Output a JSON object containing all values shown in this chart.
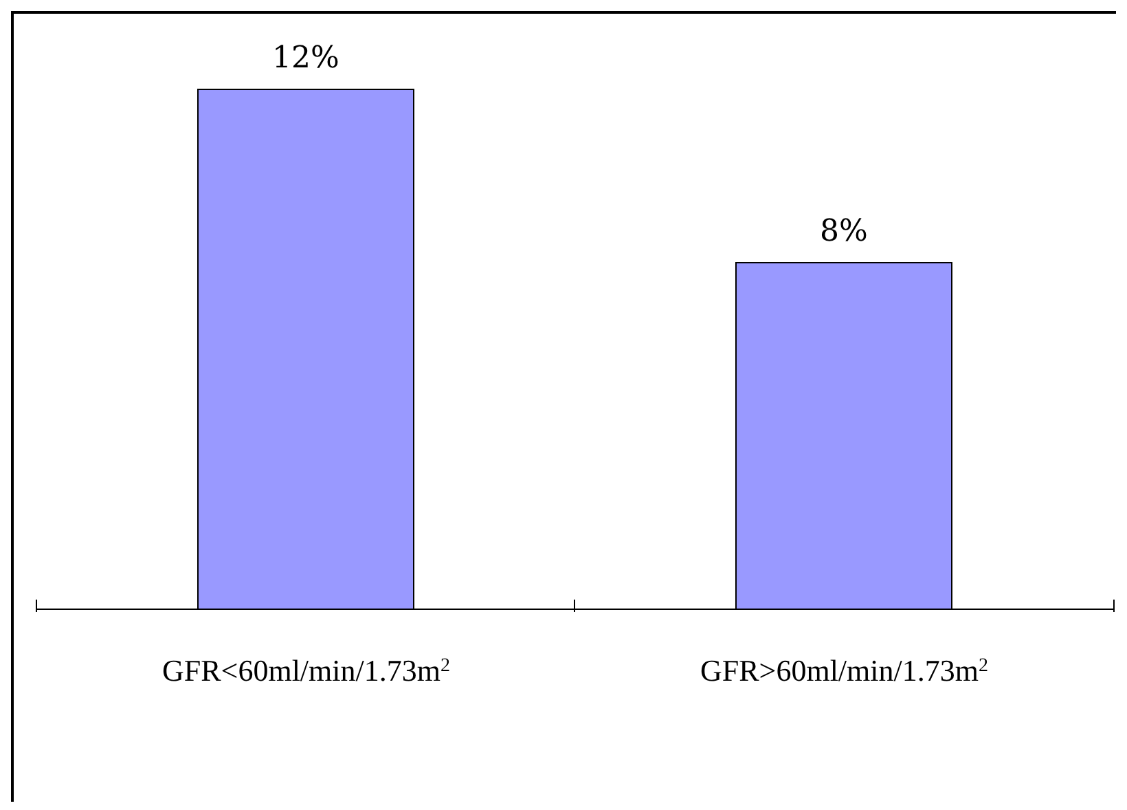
{
  "chart_data": {
    "type": "bar",
    "categories": [
      "GFR<60ml/min/1.73m$^{2}$",
      "GFR>60ml/min/1.73m$^{2}$"
    ],
    "values": [
      12,
      8
    ],
    "color": "#9999ff",
    "value_labels": [
      "12%",
      "8%"
    ]
  }
}
